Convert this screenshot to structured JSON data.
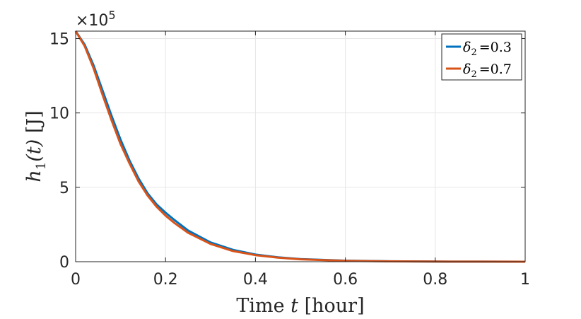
{
  "chart_data": {
    "type": "line",
    "xlabel": {
      "prefix": "Time ",
      "var": "t",
      "suffix": " [hour]"
    },
    "ylabel": {
      "func": "h",
      "sub": "1",
      "arg": "(t)",
      "unit": " [J]"
    },
    "y_multiplier": {
      "base": "×10",
      "exp": "5"
    },
    "xlim": [
      0,
      1
    ],
    "ylim": [
      0,
      15.5
    ],
    "x_ticks": [
      0,
      0.2,
      0.4,
      0.6,
      0.8,
      1
    ],
    "x_tick_labels": [
      "0",
      "0.2",
      "0.4",
      "0.6",
      "0.8",
      "1"
    ],
    "y_ticks": [
      0,
      5,
      10,
      15
    ],
    "y_tick_labels": [
      "0",
      "5",
      "10",
      "15"
    ],
    "grid": true,
    "legend_position": "top-right",
    "series": [
      {
        "name": "δ2 =0.3",
        "symbol": "δ",
        "sub": "2",
        "value": "=0.3",
        "color": "#0072BD",
        "x": [
          0,
          0.02,
          0.04,
          0.06,
          0.08,
          0.1,
          0.12,
          0.14,
          0.16,
          0.18,
          0.2,
          0.22,
          0.25,
          0.3,
          0.35,
          0.4,
          0.45,
          0.5,
          0.6,
          0.7,
          0.8,
          0.9,
          1.0
        ],
        "y": [
          15.5,
          14.6,
          13.2,
          11.5,
          9.8,
          8.2,
          6.8,
          5.6,
          4.6,
          3.85,
          3.3,
          2.8,
          2.1,
          1.3,
          0.8,
          0.48,
          0.3,
          0.18,
          0.07,
          0.03,
          0.01,
          0.004,
          0.0
        ]
      },
      {
        "name": "δ2 =0.7",
        "symbol": "δ",
        "sub": "2",
        "value": "=0.7",
        "color": "#D95319",
        "x": [
          0,
          0.02,
          0.04,
          0.06,
          0.08,
          0.1,
          0.12,
          0.14,
          0.16,
          0.18,
          0.2,
          0.22,
          0.25,
          0.3,
          0.35,
          0.4,
          0.45,
          0.5,
          0.6,
          0.7,
          0.8,
          0.9,
          1.0
        ],
        "y": [
          15.5,
          14.5,
          13.0,
          11.2,
          9.5,
          7.9,
          6.6,
          5.4,
          4.45,
          3.7,
          3.1,
          2.6,
          1.95,
          1.2,
          0.72,
          0.44,
          0.27,
          0.16,
          0.06,
          0.025,
          0.01,
          0.003,
          0.0
        ]
      }
    ]
  }
}
